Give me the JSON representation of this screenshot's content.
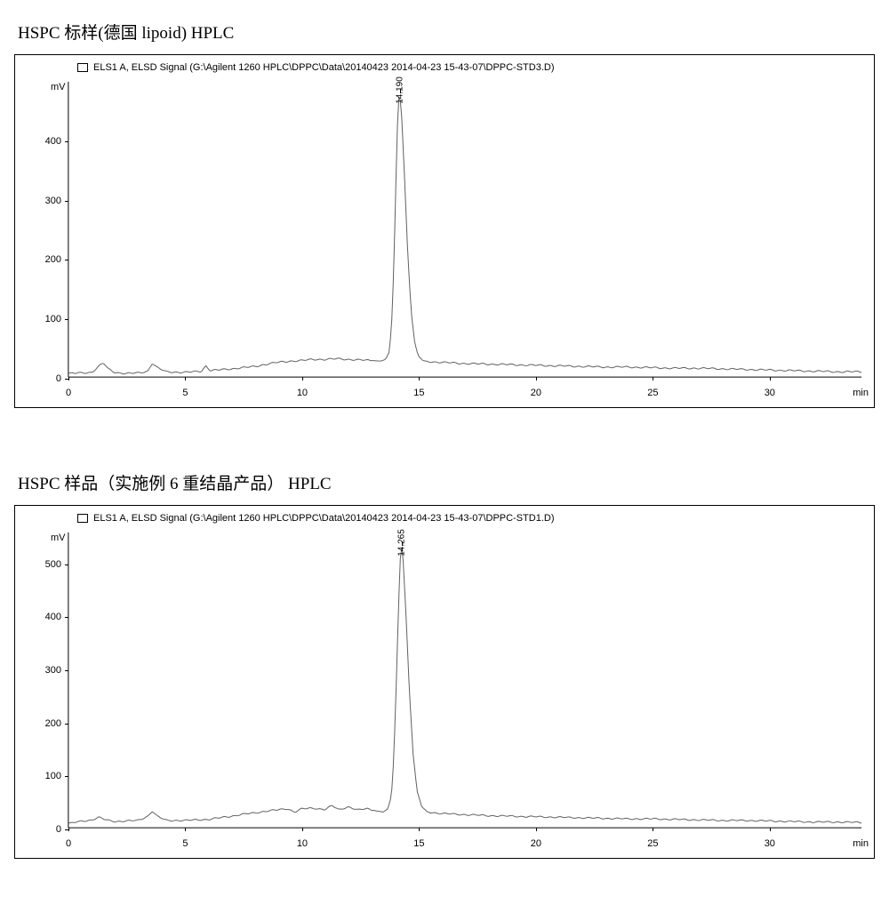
{
  "charts": [
    {
      "title": "HSPC 标样(德国 lipoid) HPLC",
      "signal_label": "ELS1 A, ELSD Signal (G:\\Agilent 1260 HPLC\\DPPC\\Data\\20140423 2014-04-23 15-43-07\\DPPC-STD3.D)",
      "y_unit": "mV",
      "x_unit": "min",
      "y_max": 500,
      "y_ticks": [
        0,
        100,
        200,
        300,
        400
      ],
      "x_max": 34,
      "x_ticks": [
        0,
        5,
        10,
        15,
        20,
        25,
        30
      ],
      "peak_label": "14.190",
      "peak_x": 14.19,
      "peak_y": 485,
      "line_color": "#606060",
      "line_width": 1,
      "background_color": "#ffffff",
      "curve": [
        [
          0,
          6
        ],
        [
          0.5,
          7
        ],
        [
          1.0,
          8
        ],
        [
          1.3,
          18
        ],
        [
          1.5,
          24
        ],
        [
          1.7,
          14
        ],
        [
          2.0,
          8
        ],
        [
          2.5,
          6
        ],
        [
          3.0,
          7
        ],
        [
          3.4,
          10
        ],
        [
          3.6,
          24
        ],
        [
          3.8,
          16
        ],
        [
          4.2,
          9
        ],
        [
          5.0,
          8
        ],
        [
          5.7,
          10
        ],
        [
          5.9,
          19
        ],
        [
          6.1,
          11
        ],
        [
          7.0,
          14
        ],
        [
          8.0,
          18
        ],
        [
          8.5,
          22
        ],
        [
          9.0,
          25
        ],
        [
          9.5,
          27
        ],
        [
          10.0,
          28
        ],
        [
          10.5,
          30
        ],
        [
          11.0,
          30
        ],
        [
          11.5,
          31
        ],
        [
          12.0,
          30
        ],
        [
          12.5,
          29
        ],
        [
          13.0,
          28
        ],
        [
          13.4,
          27
        ],
        [
          13.6,
          30
        ],
        [
          13.75,
          42
        ],
        [
          13.85,
          80
        ],
        [
          13.95,
          180
        ],
        [
          14.05,
          340
        ],
        [
          14.12,
          440
        ],
        [
          14.19,
          485
        ],
        [
          14.28,
          450
        ],
        [
          14.4,
          350
        ],
        [
          14.55,
          210
        ],
        [
          14.7,
          110
        ],
        [
          14.85,
          58
        ],
        [
          15.0,
          36
        ],
        [
          15.2,
          28
        ],
        [
          15.5,
          26
        ],
        [
          16.0,
          25
        ],
        [
          17.0,
          23
        ],
        [
          18.0,
          22
        ],
        [
          19.0,
          21
        ],
        [
          20.0,
          20
        ],
        [
          21.0,
          19
        ],
        [
          22.0,
          18
        ],
        [
          23.0,
          17
        ],
        [
          24.0,
          17
        ],
        [
          25.0,
          16
        ],
        [
          26.0,
          15
        ],
        [
          27.0,
          15
        ],
        [
          28.0,
          14
        ],
        [
          29.0,
          13
        ],
        [
          30.0,
          12
        ],
        [
          31.0,
          11
        ],
        [
          32.0,
          10
        ],
        [
          33.0,
          9
        ],
        [
          34.0,
          9
        ]
      ]
    },
    {
      "title": "HSPC 样品（实施例 6 重结晶产品） HPLC",
      "signal_label": "ELS1 A, ELSD Signal (G:\\Agilent 1260 HPLC\\DPPC\\Data\\20140423 2014-04-23 15-43-07\\DPPC-STD1.D)",
      "y_unit": "mV",
      "x_unit": "min",
      "y_max": 560,
      "y_ticks": [
        0,
        100,
        200,
        300,
        400,
        500
      ],
      "x_max": 34,
      "x_ticks": [
        0,
        5,
        10,
        15,
        20,
        25,
        30
      ],
      "peak_label": "14.265",
      "peak_x": 14.265,
      "peak_y": 540,
      "line_color": "#606060",
      "line_width": 1,
      "background_color": "#ffffff",
      "curve": [
        [
          0,
          8
        ],
        [
          0.5,
          12
        ],
        [
          1.0,
          15
        ],
        [
          1.3,
          20
        ],
        [
          1.6,
          15
        ],
        [
          2.0,
          12
        ],
        [
          2.5,
          13
        ],
        [
          3.0,
          14
        ],
        [
          3.4,
          22
        ],
        [
          3.6,
          32
        ],
        [
          3.8,
          22
        ],
        [
          4.2,
          14
        ],
        [
          5.0,
          14
        ],
        [
          6.0,
          16
        ],
        [
          7.0,
          22
        ],
        [
          7.5,
          26
        ],
        [
          8.0,
          28
        ],
        [
          8.5,
          32
        ],
        [
          9.0,
          34
        ],
        [
          9.4,
          36
        ],
        [
          9.7,
          30
        ],
        [
          10.0,
          36
        ],
        [
          10.5,
          37
        ],
        [
          11.0,
          35
        ],
        [
          11.3,
          42
        ],
        [
          11.6,
          34
        ],
        [
          12.0,
          40
        ],
        [
          12.4,
          34
        ],
        [
          12.8,
          36
        ],
        [
          13.2,
          32
        ],
        [
          13.5,
          30
        ],
        [
          13.7,
          36
        ],
        [
          13.85,
          60
        ],
        [
          13.95,
          130
        ],
        [
          14.05,
          260
        ],
        [
          14.15,
          410
        ],
        [
          14.22,
          500
        ],
        [
          14.27,
          540
        ],
        [
          14.35,
          510
        ],
        [
          14.48,
          400
        ],
        [
          14.62,
          260
        ],
        [
          14.78,
          140
        ],
        [
          14.95,
          70
        ],
        [
          15.15,
          40
        ],
        [
          15.4,
          30
        ],
        [
          16.0,
          27
        ],
        [
          17.0,
          25
        ],
        [
          18.0,
          23
        ],
        [
          19.0,
          22
        ],
        [
          20.0,
          21
        ],
        [
          21.0,
          20
        ],
        [
          22.0,
          19
        ],
        [
          23.0,
          18
        ],
        [
          24.0,
          17
        ],
        [
          25.0,
          17
        ],
        [
          26.0,
          16
        ],
        [
          27.0,
          15
        ],
        [
          28.0,
          14
        ],
        [
          29.0,
          14
        ],
        [
          30.0,
          13
        ],
        [
          31.0,
          12
        ],
        [
          32.0,
          11
        ],
        [
          33.0,
          11
        ],
        [
          34.0,
          10
        ]
      ]
    }
  ],
  "colors": {
    "page_bg": "#ffffff",
    "border": "#000000",
    "text": "#000000"
  }
}
